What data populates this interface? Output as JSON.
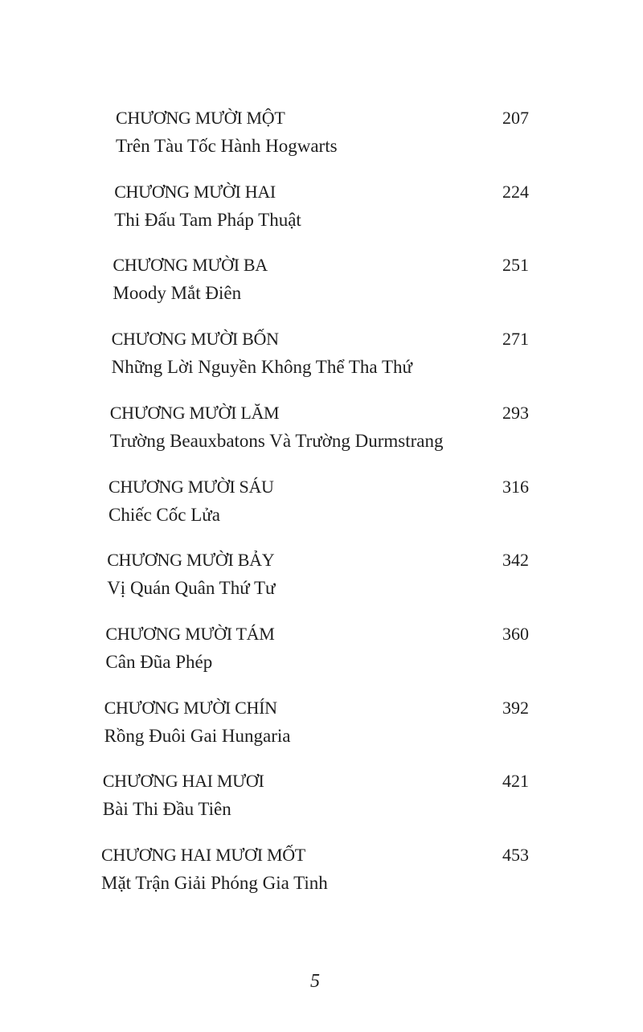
{
  "toc": [
    {
      "chapter": "CHƯƠNG MƯỜI MỘT",
      "title": "Trên Tàu Tốc Hành Hogwarts",
      "page": "207"
    },
    {
      "chapter": "CHƯƠNG MƯỜI HAI",
      "title": "Thi Đấu Tam Pháp Thuật",
      "page": "224"
    },
    {
      "chapter": "CHƯƠNG MƯỜI BA",
      "title": "Moody Mắt Điên",
      "page": "251"
    },
    {
      "chapter": "CHƯƠNG MƯỜI BỐN",
      "title": "Những Lời Nguyền Không Thể Tha Thứ",
      "page": "271"
    },
    {
      "chapter": "CHƯƠNG MƯỜI LĂM",
      "title": "Trường Beauxbatons Và Trường Durmstrang",
      "page": "293"
    },
    {
      "chapter": "CHƯƠNG MƯỜI SÁU",
      "title": "Chiếc Cốc Lửa",
      "page": "316"
    },
    {
      "chapter": "CHƯƠNG MƯỜI BẢY",
      "title": "Vị Quán Quân Thứ Tư",
      "page": "342"
    },
    {
      "chapter": "CHƯƠNG MƯỜI TÁM",
      "title": "Cân Đũa Phép",
      "page": "360"
    },
    {
      "chapter": "CHƯƠNG MƯỜI CHÍN",
      "title": "Rồng Đuôi Gai Hungaria",
      "page": "392"
    },
    {
      "chapter": "CHƯƠNG HAI MƯƠI",
      "title": "Bài Thi Đầu Tiên",
      "page": "421"
    },
    {
      "chapter": "CHƯƠNG HAI MƯƠI MỐT",
      "title": "Mặt Trận Giải Phóng Gia Tinh",
      "page": "453"
    }
  ],
  "page_number": "5"
}
